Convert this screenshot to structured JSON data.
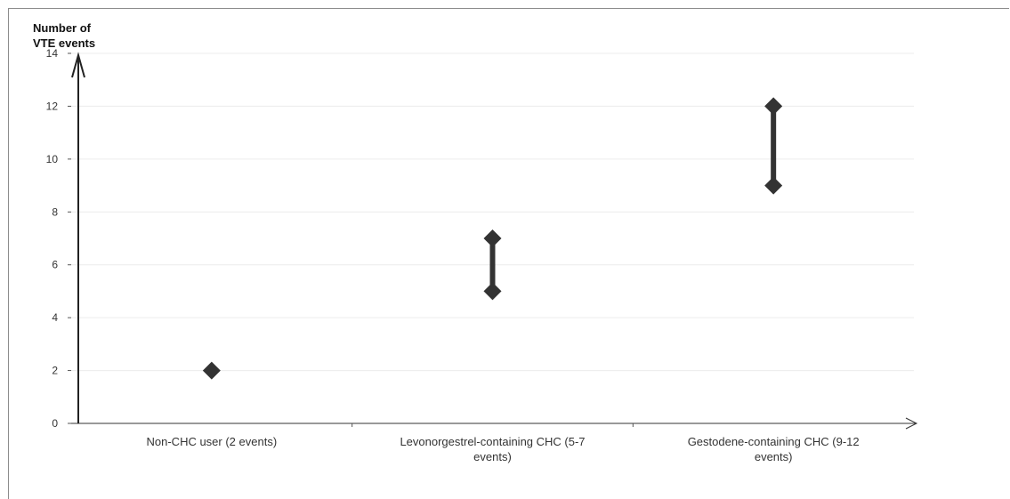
{
  "chart_data": {
    "type": "scatter",
    "title": "",
    "ylabel_lines": [
      "Number of",
      "VTE events"
    ],
    "xlabel": "",
    "ylim": [
      0,
      14
    ],
    "yticks": [
      0,
      2,
      4,
      6,
      8,
      10,
      12,
      14
    ],
    "grid": true,
    "legend": "none",
    "marker_color": "#333333",
    "categories": [
      {
        "label_lines": [
          "Non-CHC user (2 events)"
        ],
        "low": 2,
        "high": 2
      },
      {
        "label_lines": [
          "Levonorgestrel-containing CHC (5-7",
          "events)"
        ],
        "low": 5,
        "high": 7
      },
      {
        "label_lines": [
          "Gestodene-containing CHC (9-12",
          "events)"
        ],
        "low": 9,
        "high": 12
      }
    ]
  }
}
